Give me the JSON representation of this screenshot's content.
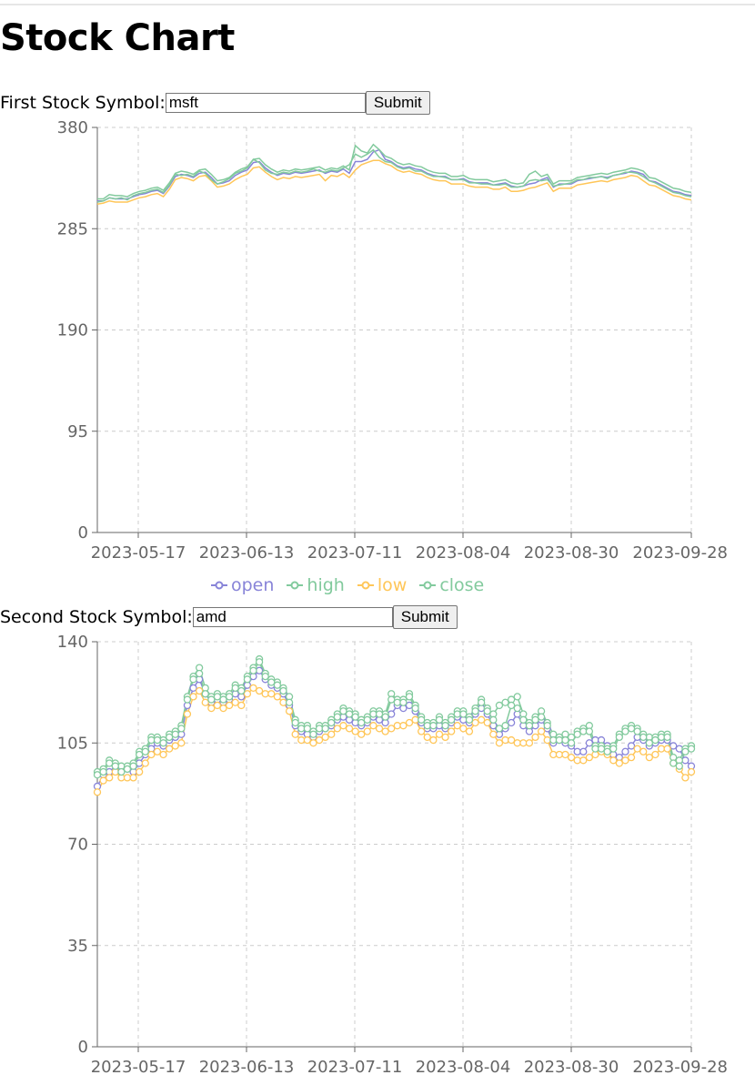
{
  "page": {
    "title": "Stock Chart"
  },
  "form1": {
    "label": "First Stock Symbol:",
    "value": "msft",
    "button": "Submit"
  },
  "form2": {
    "label": "Second Stock Symbol:",
    "value": "amd",
    "button": "Submit"
  },
  "colors": {
    "open": "#8884d8",
    "high": "#82ca9d",
    "low": "#ffc658",
    "close": "#82ca9d",
    "grid": "#cccccc",
    "axis": "#666666"
  },
  "legend": [
    {
      "key": "open",
      "label": "open",
      "color": "#8884d8"
    },
    {
      "key": "high",
      "label": "high",
      "color": "#82ca9d"
    },
    {
      "key": "low",
      "label": "low",
      "color": "#ffc658"
    },
    {
      "key": "close",
      "label": "close",
      "color": "#82ca9d"
    }
  ],
  "chart_data": [
    {
      "type": "line",
      "symbol": "msft",
      "dots": false,
      "ylim": [
        0,
        380
      ],
      "yticks": [
        0,
        95,
        190,
        285,
        380
      ],
      "xticks": [
        "2023-05-17",
        "2023-06-13",
        "2023-07-11",
        "2023-08-04",
        "2023-08-30",
        "2023-09-28"
      ],
      "grid": true,
      "series": [
        {
          "name": "open",
          "values": [
            311,
            311,
            314,
            313,
            313,
            313,
            315,
            317,
            318,
            320,
            321,
            318,
            325,
            334,
            336,
            335,
            333,
            337,
            338,
            333,
            327,
            328,
            330,
            335,
            338,
            340,
            347,
            348,
            342,
            338,
            335,
            337,
            336,
            338,
            337,
            338,
            339,
            340,
            337,
            339,
            338,
            341,
            337,
            348,
            348,
            350,
            357,
            359,
            350,
            348,
            344,
            342,
            343,
            341,
            340,
            337,
            335,
            334,
            334,
            331,
            331,
            332,
            329,
            328,
            328,
            328,
            326,
            327,
            328,
            325,
            324,
            325,
            327,
            328,
            331,
            333,
            324,
            327,
            327,
            327,
            330,
            331,
            332,
            333,
            334,
            333,
            335,
            336,
            337,
            339,
            338,
            336,
            330,
            329,
            326,
            323,
            320,
            319,
            317,
            316
          ]
        },
        {
          "name": "high",
          "values": [
            313,
            313,
            317,
            316,
            316,
            315,
            318,
            320,
            321,
            323,
            324,
            321,
            328,
            337,
            339,
            338,
            336,
            340,
            341,
            336,
            330,
            331,
            333,
            338,
            341,
            343,
            350,
            351,
            345,
            341,
            338,
            340,
            339,
            341,
            340,
            341,
            342,
            343,
            340,
            342,
            341,
            344,
            340,
            363,
            358,
            356,
            364,
            359,
            353,
            351,
            347,
            345,
            346,
            344,
            343,
            340,
            338,
            337,
            337,
            334,
            334,
            335,
            332,
            331,
            331,
            331,
            329,
            330,
            331,
            328,
            327,
            328,
            336,
            339,
            334,
            336,
            327,
            330,
            330,
            330,
            333,
            334,
            335,
            336,
            337,
            336,
            338,
            339,
            340,
            342,
            341,
            339,
            333,
            332,
            329,
            326,
            323,
            322,
            320,
            319
          ]
        },
        {
          "name": "low",
          "values": [
            308,
            309,
            311,
            310,
            310,
            310,
            312,
            314,
            315,
            317,
            318,
            315,
            322,
            331,
            333,
            332,
            330,
            334,
            335,
            330,
            324,
            325,
            327,
            331,
            334,
            336,
            342,
            343,
            338,
            334,
            331,
            333,
            332,
            334,
            333,
            334,
            335,
            336,
            330,
            335,
            334,
            337,
            333,
            340,
            345,
            347,
            349,
            349,
            346,
            344,
            340,
            338,
            339,
            337,
            336,
            333,
            331,
            330,
            330,
            327,
            327,
            327,
            325,
            324,
            324,
            324,
            322,
            322,
            324,
            320,
            320,
            321,
            323,
            324,
            326,
            328,
            320,
            323,
            323,
            323,
            326,
            327,
            328,
            329,
            330,
            329,
            331,
            332,
            333,
            335,
            334,
            330,
            326,
            325,
            322,
            319,
            316,
            315,
            313,
            312
          ]
        },
        {
          "name": "close",
          "values": [
            310,
            311,
            314,
            313,
            314,
            312,
            316,
            318,
            319,
            321,
            322,
            319,
            326,
            336,
            335,
            336,
            334,
            339,
            337,
            331,
            327,
            329,
            332,
            337,
            339,
            342,
            350,
            347,
            340,
            337,
            336,
            338,
            337,
            339,
            338,
            339,
            341,
            339,
            338,
            340,
            339,
            342,
            345,
            355,
            352,
            355,
            359,
            352,
            348,
            347,
            343,
            341,
            342,
            339,
            339,
            336,
            334,
            334,
            333,
            331,
            331,
            331,
            328,
            328,
            327,
            327,
            326,
            326,
            327,
            324,
            324,
            325,
            330,
            331,
            330,
            331,
            325,
            326,
            327,
            328,
            331,
            331,
            333,
            333,
            334,
            332,
            335,
            336,
            338,
            338,
            337,
            334,
            330,
            328,
            325,
            322,
            319,
            318,
            316,
            315
          ]
        }
      ]
    },
    {
      "type": "line",
      "symbol": "amd",
      "dots": true,
      "ylim": [
        0,
        140
      ],
      "yticks": [
        0,
        35,
        70,
        105,
        140
      ],
      "xticks": [
        "2023-05-17",
        "2023-06-13",
        "2023-07-11",
        "2023-08-04",
        "2023-08-30",
        "2023-09-28"
      ],
      "grid": true,
      "series": [
        {
          "name": "open",
          "values": [
            90,
            94,
            95,
            97,
            96,
            96,
            95,
            98,
            101,
            103,
            105,
            104,
            106,
            107,
            108,
            118,
            124,
            127,
            122,
            119,
            120,
            119,
            120,
            122,
            121,
            125,
            128,
            130,
            127,
            125,
            124,
            122,
            118,
            111,
            109,
            108,
            107,
            109,
            110,
            111,
            113,
            114,
            113,
            112,
            111,
            112,
            114,
            113,
            112,
            115,
            118,
            117,
            118,
            116,
            112,
            110,
            110,
            111,
            110,
            112,
            114,
            113,
            112,
            115,
            117,
            115,
            111,
            108,
            110,
            112,
            115,
            111,
            109,
            111,
            113,
            110,
            105,
            106,
            105,
            104,
            102,
            102,
            105,
            106,
            106,
            104,
            101,
            100,
            102,
            104,
            107,
            106,
            104,
            105,
            106,
            106,
            104,
            103,
            99,
            97
          ]
        },
        {
          "name": "high",
          "values": [
            95,
            96,
            99,
            98,
            97,
            97,
            98,
            102,
            103,
            107,
            107,
            106,
            108,
            109,
            111,
            121,
            128,
            131,
            124,
            121,
            122,
            121,
            122,
            125,
            124,
            128,
            131,
            134,
            129,
            127,
            126,
            124,
            121,
            113,
            111,
            111,
            109,
            111,
            111,
            113,
            115,
            117,
            116,
            115,
            113,
            114,
            116,
            116,
            115,
            122,
            120,
            120,
            122,
            118,
            114,
            112,
            112,
            114,
            112,
            114,
            116,
            116,
            114,
            117,
            120,
            117,
            115,
            118,
            119,
            120,
            121,
            115,
            112,
            114,
            116,
            112,
            108,
            107,
            108,
            107,
            109,
            110,
            111,
            104,
            104,
            103,
            104,
            108,
            110,
            111,
            110,
            108,
            107,
            107,
            108,
            108,
            100,
            99,
            103,
            104
          ]
        },
        {
          "name": "low",
          "values": [
            88,
            92,
            93,
            95,
            93,
            93,
            93,
            95,
            98,
            101,
            102,
            101,
            103,
            104,
            105,
            115,
            121,
            123,
            119,
            117,
            118,
            117,
            118,
            119,
            118,
            122,
            124,
            123,
            122,
            122,
            121,
            119,
            116,
            108,
            106,
            106,
            105,
            106,
            107,
            108,
            110,
            111,
            110,
            109,
            108,
            109,
            111,
            110,
            109,
            110,
            111,
            111,
            112,
            113,
            109,
            107,
            106,
            108,
            107,
            109,
            111,
            110,
            109,
            112,
            113,
            112,
            108,
            105,
            106,
            106,
            105,
            105,
            105,
            107,
            109,
            106,
            101,
            101,
            101,
            100,
            99,
            99,
            100,
            101,
            102,
            101,
            99,
            98,
            99,
            100,
            103,
            102,
            100,
            101,
            103,
            103,
            98,
            96,
            93,
            95
          ]
        },
        {
          "name": "close",
          "values": [
            94,
            95,
            98,
            97,
            95,
            96,
            97,
            101,
            102,
            106,
            106,
            105,
            107,
            108,
            110,
            120,
            127,
            129,
            122,
            120,
            121,
            120,
            121,
            124,
            123,
            127,
            130,
            133,
            128,
            126,
            125,
            123,
            119,
            112,
            110,
            110,
            108,
            110,
            110,
            112,
            114,
            116,
            115,
            114,
            112,
            113,
            115,
            115,
            114,
            120,
            119,
            119,
            121,
            117,
            113,
            111,
            111,
            113,
            111,
            113,
            115,
            115,
            113,
            116,
            119,
            116,
            113,
            110,
            111,
            118,
            117,
            113,
            111,
            113,
            114,
            111,
            106,
            106,
            106,
            105,
            108,
            109,
            109,
            103,
            103,
            102,
            103,
            107,
            109,
            110,
            109,
            107,
            105,
            106,
            107,
            107,
            98,
            97,
            102,
            103
          ]
        }
      ]
    }
  ]
}
